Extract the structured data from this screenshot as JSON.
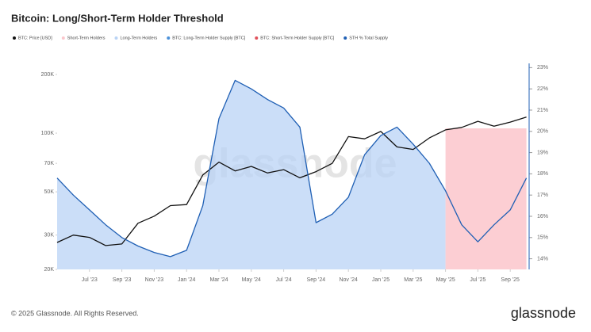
{
  "chart_data": {
    "type": "line",
    "title": "Bitcoin: Long/Short-Term Holder Threshold",
    "x": [
      "2023-05",
      "2023-06",
      "2023-07",
      "2023-08",
      "2023-09",
      "2023-10",
      "2023-11",
      "2023-12",
      "2024-01",
      "2024-02",
      "2024-03",
      "2024-04",
      "2024-05",
      "2024-06",
      "2024-07",
      "2024-08",
      "2024-09",
      "2024-10",
      "2024-11",
      "2024-12",
      "2025-01",
      "2025-02",
      "2025-03",
      "2025-04",
      "2025-05",
      "2025-06",
      "2025-07",
      "2025-08",
      "2025-09",
      "2025-10"
    ],
    "xticks": [
      {
        "value": "2023-07",
        "label": "Jul '23"
      },
      {
        "value": "2023-09",
        "label": "Sep '23"
      },
      {
        "value": "2023-11",
        "label": "Nov '23"
      },
      {
        "value": "2024-01",
        "label": "Jan '24"
      },
      {
        "value": "2024-03",
        "label": "Mar '24"
      },
      {
        "value": "2024-05",
        "label": "May '24"
      },
      {
        "value": "2024-07",
        "label": "Jul '24"
      },
      {
        "value": "2024-09",
        "label": "Sep '24"
      },
      {
        "value": "2024-11",
        "label": "Nov '24"
      },
      {
        "value": "2025-01",
        "label": "Jan '25"
      },
      {
        "value": "2025-03",
        "label": "Mar '25"
      },
      {
        "value": "2025-05",
        "label": "May '25"
      },
      {
        "value": "2025-07",
        "label": "Jul '25"
      },
      {
        "value": "2025-09",
        "label": "Sep '25"
      }
    ],
    "series": [
      {
        "name": "BTC: Price [USD]",
        "color": "#111111",
        "values": [
          27500,
          30000,
          29200,
          26500,
          27000,
          34500,
          37500,
          42500,
          43000,
          61000,
          71000,
          64000,
          67500,
          62500,
          65000,
          59000,
          63500,
          70000,
          96000,
          93500,
          102000,
          85000,
          82500,
          94500,
          104000,
          107000,
          115000,
          108500,
          114000,
          121000
        ]
      },
      {
        "name": "STH % Total Supply",
        "color": "#1f5fb4",
        "axis": "y2",
        "values": [
          17.8,
          17.0,
          16.3,
          15.6,
          15.0,
          14.6,
          14.3,
          14.1,
          14.4,
          16.5,
          20.6,
          22.4,
          22.0,
          21.5,
          21.1,
          20.2,
          15.7,
          16.1,
          16.9,
          18.9,
          19.8,
          20.2,
          19.4,
          18.5,
          17.2,
          15.6,
          14.8,
          15.6,
          16.3,
          17.8
        ]
      }
    ],
    "regions": [
      {
        "name": "Long-Term Holders",
        "color": "#b9d3f5",
        "from": "2023-05",
        "to": "2025-05"
      },
      {
        "name": "Short-Term Holders",
        "color": "#fbc6cb",
        "from": "2025-05",
        "to": "2025-10"
      }
    ],
    "legend_extra": [
      {
        "name": "BTC: Long-Term Holder Supply [BTC]",
        "color": "#4a90d9"
      },
      {
        "name": "BTC: Short-Term Holder Supply [BTC]",
        "color": "#e0505a"
      }
    ],
    "log_y": true,
    "ylim": [
      20000,
      228000
    ],
    "yticks": [
      {
        "value": 20000,
        "label": "20K"
      },
      {
        "value": 30000,
        "label": "30K"
      },
      {
        "value": 50000,
        "label": "50K"
      },
      {
        "value": 70000,
        "label": "70K"
      },
      {
        "value": 100000,
        "label": "100K"
      },
      {
        "value": 200000,
        "label": "200K"
      }
    ],
    "y2lim": [
      13.5,
      23.2
    ],
    "y2ticks": [
      {
        "value": 14,
        "label": "14%"
      },
      {
        "value": 15,
        "label": "15%"
      },
      {
        "value": 16,
        "label": "16%"
      },
      {
        "value": 17,
        "label": "17%"
      },
      {
        "value": 18,
        "label": "18%"
      },
      {
        "value": 19,
        "label": "19%"
      },
      {
        "value": 20,
        "label": "20%"
      },
      {
        "value": 21,
        "label": "21%"
      },
      {
        "value": 22,
        "label": "22%"
      },
      {
        "value": 23,
        "label": "23%"
      }
    ],
    "watermark": "glassnode",
    "footer": "© 2025 Glassnode. All Rights Reserved.",
    "logo": "glassnode"
  }
}
